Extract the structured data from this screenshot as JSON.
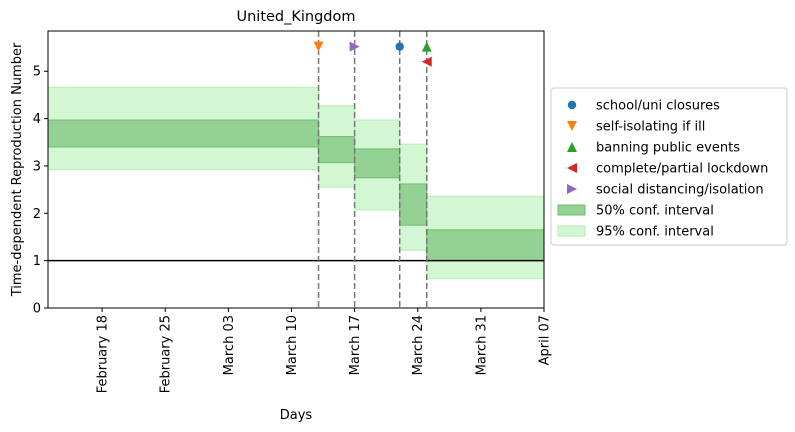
{
  "chart_data": {
    "type": "step-band",
    "title": "United_Kingdom",
    "xlabel": "Days",
    "ylabel": "Time-dependent Reproduction Number",
    "x_axis_type": "date",
    "xlim": [
      "2020-02-12",
      "2020-04-07"
    ],
    "ylim": [
      0,
      5.85
    ],
    "x_ticks": [
      {
        "date": "2020-02-18",
        "label": "February 18"
      },
      {
        "date": "2020-02-25",
        "label": "February 25"
      },
      {
        "date": "2020-03-03",
        "label": "March 03"
      },
      {
        "date": "2020-03-10",
        "label": "March 10"
      },
      {
        "date": "2020-03-17",
        "label": "March 17"
      },
      {
        "date": "2020-03-24",
        "label": "March 24"
      },
      {
        "date": "2020-03-31",
        "label": "March 31"
      },
      {
        "date": "2020-04-07",
        "label": "April 07"
      }
    ],
    "y_ticks": [
      0,
      1,
      2,
      3,
      4,
      5
    ],
    "reference_line": {
      "y": 1,
      "color": "#000000"
    },
    "segments": [
      {
        "start": "2020-02-12",
        "end": "2020-03-13",
        "ci50": [
          3.4,
          3.97
        ],
        "ci95": [
          2.92,
          4.66
        ]
      },
      {
        "start": "2020-03-13",
        "end": "2020-03-17",
        "ci50": [
          3.07,
          3.62
        ],
        "ci95": [
          2.55,
          4.27
        ]
      },
      {
        "start": "2020-03-17",
        "end": "2020-03-22",
        "ci50": [
          2.75,
          3.36
        ],
        "ci95": [
          2.07,
          3.97
        ]
      },
      {
        "start": "2020-03-22",
        "end": "2020-03-25",
        "ci50": [
          1.75,
          2.62
        ],
        "ci95": [
          1.22,
          3.46
        ]
      },
      {
        "start": "2020-03-25",
        "end": "2020-04-07",
        "ci50": [
          1.0,
          1.65
        ],
        "ci95": [
          0.62,
          2.36
        ]
      }
    ],
    "interventions": [
      {
        "name": "school/uni closures",
        "date": "2020-03-22",
        "marker": "circle",
        "color": "#1f77b4",
        "y": 5.52
      },
      {
        "name": "self-isolating if ill",
        "date": "2020-03-13",
        "marker": "triangle-down",
        "color": "#ff7f0e",
        "y": 5.52
      },
      {
        "name": "banning public events",
        "date": "2020-03-25",
        "marker": "triangle-up",
        "color": "#2ca02c",
        "y": 5.52
      },
      {
        "name": "complete/partial lockdown",
        "date": "2020-03-25",
        "marker": "triangle-left",
        "color": "#d62728",
        "y": 5.2
      },
      {
        "name": "social distancing/isolation",
        "date": "2020-03-17",
        "marker": "triangle-right",
        "color": "#9467bd",
        "y": 5.52
      }
    ],
    "intervention_lines": [
      "2020-03-13",
      "2020-03-17",
      "2020-03-22",
      "2020-03-25"
    ],
    "band_labels": {
      "ci50": "50% conf. interval",
      "ci95": "95% conf. interval"
    },
    "colors": {
      "ci50_fill": "#94d194",
      "ci50_edge": "#6cbf6c",
      "ci95_fill": "#d2f7d2",
      "ci95_edge": "#b6edb6",
      "vline": "#777777"
    },
    "grid": false,
    "legend_position": "right"
  }
}
